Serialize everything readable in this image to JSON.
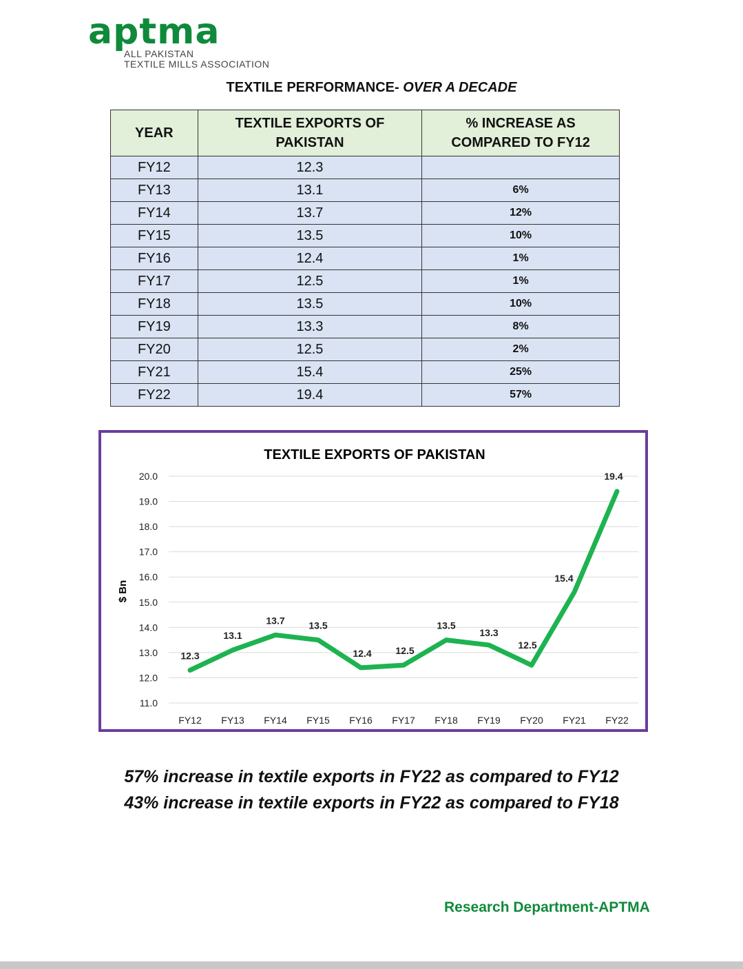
{
  "brand": {
    "logo_text": "aptma",
    "subtitle_line1": "ALL PAKISTAN",
    "subtitle_line2": "TEXTILE MILLS ASSOCIATION"
  },
  "page_title": {
    "main": "TEXTILE PERFORMANCE-",
    "italic": "OVER A DECADE"
  },
  "table": {
    "headers": [
      "YEAR",
      "TEXTILE EXPORTS OF PAKISTAN",
      "% INCREASE AS COMPARED TO FY12"
    ],
    "rows": [
      [
        "FY12",
        "12.3",
        ""
      ],
      [
        "FY13",
        "13.1",
        "6%"
      ],
      [
        "FY14",
        "13.7",
        "12%"
      ],
      [
        "FY15",
        "13.5",
        "10%"
      ],
      [
        "FY16",
        "12.4",
        "1%"
      ],
      [
        "FY17",
        "12.5",
        "1%"
      ],
      [
        "FY18",
        "13.5",
        "10%"
      ],
      [
        "FY19",
        "13.3",
        "8%"
      ],
      [
        "FY20",
        "12.5",
        "2%"
      ],
      [
        "FY21",
        "15.4",
        "25%"
      ],
      [
        "FY22",
        "19.4",
        "57%"
      ]
    ]
  },
  "chart_data": {
    "type": "line",
    "title": "TEXTILE EXPORTS OF PAKISTAN",
    "xlabel": "",
    "ylabel": "$ Bn",
    "categories": [
      "FY12",
      "FY13",
      "FY14",
      "FY15",
      "FY16",
      "FY17",
      "FY18",
      "FY19",
      "FY20",
      "FY21",
      "FY22"
    ],
    "values": [
      12.3,
      13.1,
      13.7,
      13.5,
      12.4,
      12.5,
      13.5,
      13.3,
      12.5,
      15.4,
      19.4
    ],
    "data_labels": [
      "12.3",
      "13.1",
      "13.7",
      "13.5",
      "12.4",
      "12.5",
      "13.5",
      "13.3",
      "12.5",
      "15.4",
      "19.4"
    ],
    "ylim": [
      11.0,
      20.0
    ],
    "yticks": [
      "11.0",
      "12.0",
      "13.0",
      "14.0",
      "15.0",
      "16.0",
      "17.0",
      "18.0",
      "19.0",
      "20.0"
    ],
    "grid": true,
    "legend": "none",
    "line_color": "#1db350",
    "frame_color": "#6a3d9a"
  },
  "notes": [
    "57% increase in textile exports in FY22 as compared to FY12",
    "43% increase in textile exports in FY22 as compared to FY18"
  ],
  "footer": "Research Department-APTMA"
}
